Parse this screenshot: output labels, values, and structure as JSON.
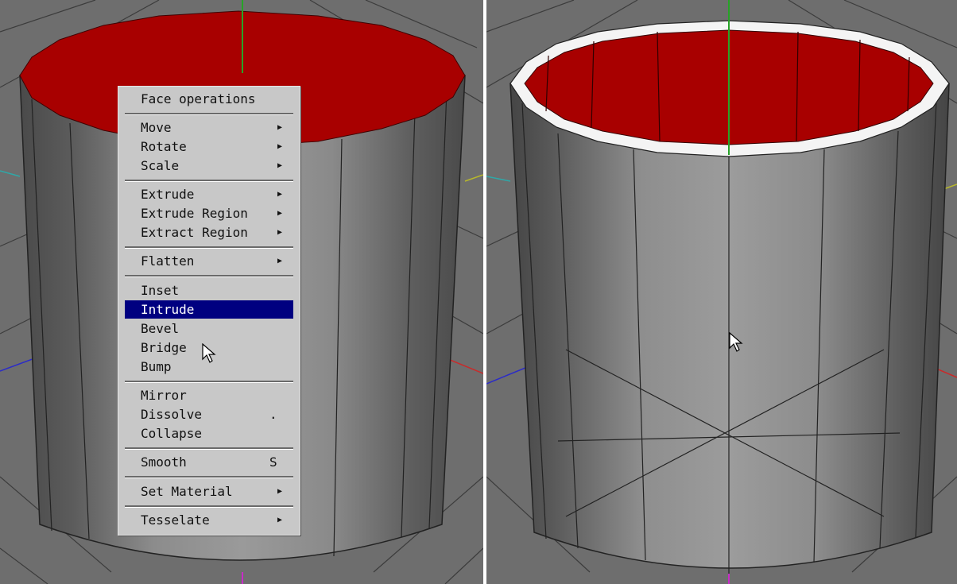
{
  "menu": {
    "title": "Face operations",
    "items": {
      "move": {
        "label": "Move",
        "arrow": "▶"
      },
      "rotate": {
        "label": "Rotate",
        "arrow": "▶"
      },
      "scale": {
        "label": "Scale",
        "arrow": "▶"
      },
      "extrude": {
        "label": "Extrude",
        "arrow": "▶"
      },
      "extrude_region": {
        "label": "Extrude Region",
        "arrow": "▶"
      },
      "extract_region": {
        "label": "Extract Region",
        "arrow": "▶"
      },
      "flatten": {
        "label": "Flatten",
        "arrow": "▶"
      },
      "inset": {
        "label": "Inset"
      },
      "intrude": {
        "label": "Intrude",
        "selected": true
      },
      "bevel": {
        "label": "Bevel"
      },
      "bridge": {
        "label": "Bridge"
      },
      "bump": {
        "label": "Bump"
      },
      "mirror": {
        "label": "Mirror"
      },
      "dissolve": {
        "label": "Dissolve",
        "hotkey": "."
      },
      "collapse": {
        "label": "Collapse"
      },
      "smooth": {
        "label": "Smooth",
        "hotkey": "S"
      },
      "set_material": {
        "label": "Set Material",
        "arrow": "▶"
      },
      "tesselate": {
        "label": "Tesselate",
        "arrow": "▶"
      }
    }
  },
  "colors": {
    "viewport_bg": "#6e6e6e",
    "selected_face": "#a80000",
    "menu_bg": "#c8c8c8",
    "menu_highlight": "#000080",
    "axis_x": "#cc2222",
    "axis_y": "#22aa22",
    "axis_z": "#2222cc"
  },
  "icons": {
    "cursor_left": "arrow-pointer-icon",
    "cursor_right": "arrow-pointer-icon"
  }
}
